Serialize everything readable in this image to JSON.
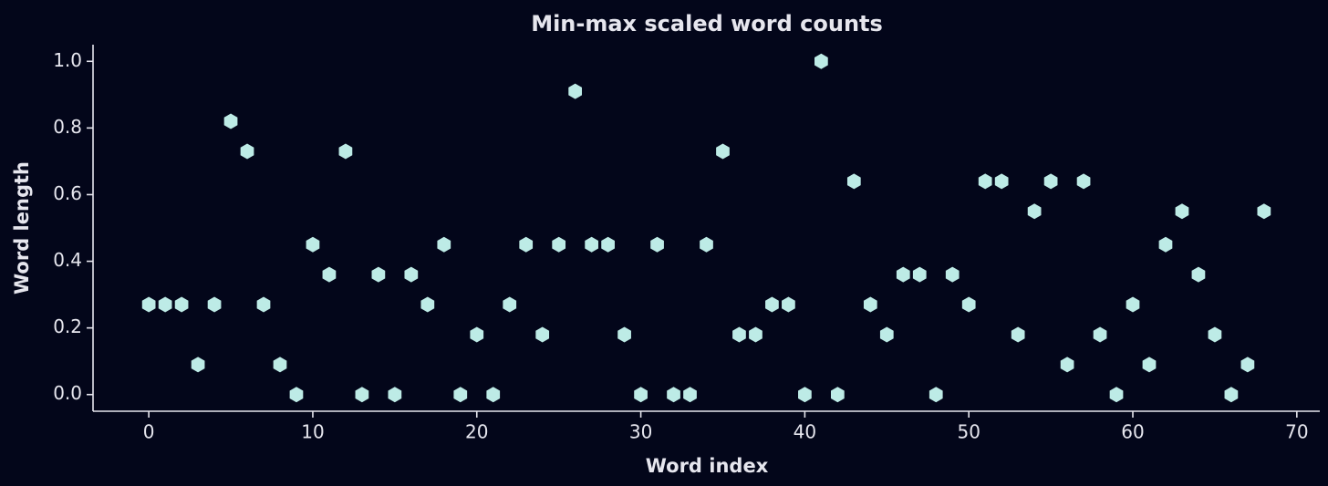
{
  "chart_data": {
    "type": "scatter",
    "title": "Min-max scaled word counts",
    "x_label": "Word index",
    "y_label": "Word length",
    "x": [
      0,
      1,
      2,
      3,
      4,
      5,
      6,
      7,
      8,
      9,
      10,
      11,
      12,
      13,
      14,
      15,
      16,
      17,
      18,
      19,
      20,
      21,
      22,
      23,
      24,
      25,
      26,
      27,
      28,
      29,
      30,
      31,
      32,
      33,
      34,
      35,
      36,
      37,
      38,
      39,
      40,
      41,
      42,
      43,
      44,
      45,
      46,
      47,
      48,
      49,
      50,
      51,
      52,
      53,
      54,
      55,
      56,
      57,
      58,
      59,
      60,
      61,
      62,
      63,
      64,
      65,
      66,
      67,
      68
    ],
    "series": [
      {
        "color": "#bdebe6",
        "values": [
          0.27,
          0.27,
          0.27,
          0.09,
          0.27,
          0.82,
          0.73,
          0.27,
          0.09,
          0,
          0.45,
          0.36,
          0.73,
          0,
          0.36,
          0,
          0.36,
          0.27,
          0.45,
          0,
          0.18,
          0,
          0.27,
          0.45,
          0.18,
          0.45,
          0.91,
          0.45,
          0.45,
          0.18,
          0,
          0.45,
          0,
          0,
          0.45,
          0.73,
          0.18,
          0.18,
          0.27,
          0.27,
          0,
          1.0,
          0,
          0.64,
          0.27,
          0.18,
          0.36,
          0.36,
          0,
          0.36,
          0.27,
          0.64,
          0.64,
          0.18,
          0.55,
          0.64,
          0.09,
          0.64,
          0.18,
          0,
          0.27,
          0.09,
          0.45,
          0.55,
          0.36,
          0.18,
          0,
          0.09,
          0.55
        ]
      }
    ],
    "xlim": [
      -3.4,
      71.4
    ],
    "ylim": [
      -0.05,
      1.05
    ],
    "xticks": [
      0,
      10,
      20,
      30,
      40,
      50,
      60,
      70
    ],
    "yticks": [
      {
        "value": 0,
        "label": "0.0"
      },
      0.2,
      0.4,
      0.6,
      0.8,
      {
        "value": 1,
        "label": "1.0"
      }
    ]
  }
}
